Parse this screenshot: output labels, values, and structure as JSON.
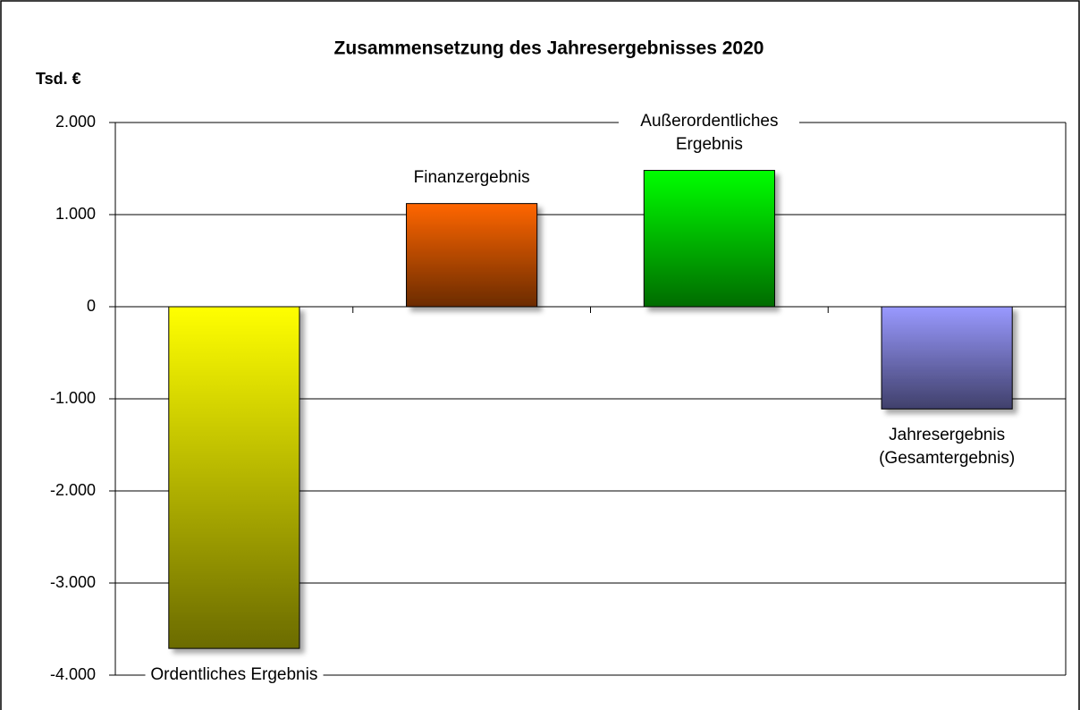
{
  "chart_data": {
    "type": "bar",
    "title": "Zusammensetzung des Jahresergebnisses 2020",
    "y_label": "Tsd. €",
    "categories": [
      "Ordentliches Ergebnis",
      "Finanzergebnis",
      "Außerordentliches Ergebnis",
      "Jahresergebnis (Gesamtergebnis)"
    ],
    "values": [
      -3710,
      1120,
      1480,
      -1110
    ],
    "colors": [
      "#ffff00",
      "#ff6600",
      "#00ff00",
      "#9999ff"
    ],
    "ylim": [
      -4000,
      2000
    ],
    "yticks": [
      {
        "value": -4000,
        "label": "-4.000"
      },
      {
        "value": -3000,
        "label": "-3.000"
      },
      {
        "value": -2000,
        "label": "-2.000"
      },
      {
        "value": -1000,
        "label": "-1.000"
      },
      0,
      {
        "value": 1000,
        "label": "1.000"
      },
      {
        "value": 2000,
        "label": "2.000"
      }
    ],
    "grid": true
  }
}
